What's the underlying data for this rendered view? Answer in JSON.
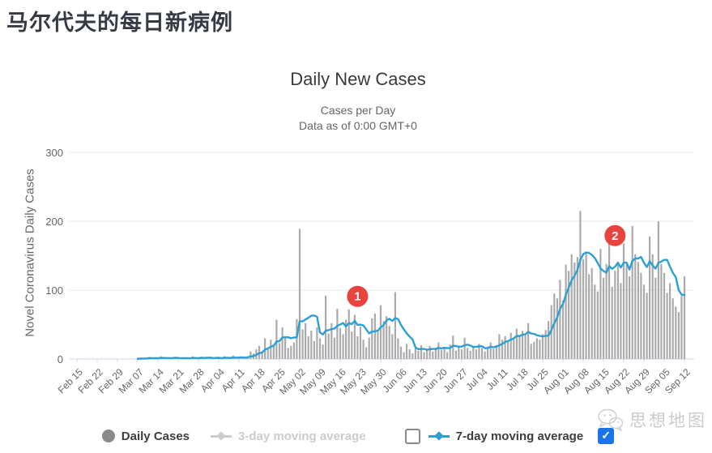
{
  "page": {
    "title": "马尔代夫的每日新病例"
  },
  "chart": {
    "title": "Daily New Cases",
    "subtitle1": "Cases per Day",
    "subtitle2": "Data as of 0:00 GMT+0",
    "y_axis_label": "Novel Coronavirus Daily Cases"
  },
  "legend": {
    "daily_cases_label": "Daily Cases",
    "ma3_label": "3-day moving average",
    "ma3_enabled": false,
    "ma3_checkbox_checked": false,
    "ma7_label": "7-day moving average",
    "ma7_enabled": true,
    "ma7_checkbox_checked": true
  },
  "watermark": {
    "icon": "wechat-logo-icon",
    "text": "思想地图"
  },
  "chart_data": {
    "type": "bar",
    "title": "Daily New Cases",
    "xlabel": "",
    "ylabel": "Novel Coronavirus Daily Cases",
    "ylim": [
      0,
      300
    ],
    "y_ticks": [
      0,
      100,
      200,
      300
    ],
    "grid": "horizontal",
    "legend_position": "bottom",
    "x_start_date": "Feb 15",
    "x_end_date": "Sep 12",
    "x_tick_labels": [
      "Feb 15",
      "Feb 22",
      "Feb 29",
      "Mar 07",
      "Mar 14",
      "Mar 21",
      "Mar 28",
      "Apr 04",
      "Apr 11",
      "Apr 18",
      "Apr 25",
      "May 02",
      "May 09",
      "May 16",
      "May 23",
      "May 30",
      "Jun 06",
      "Jun 13",
      "Jun 20",
      "Jun 27",
      "Jul 04",
      "Jul 11",
      "Jul 18",
      "Jul 25",
      "Aug 01",
      "Aug 08",
      "Aug 15",
      "Aug 22",
      "Aug 29",
      "Sep 05",
      "Sep 12"
    ],
    "series": [
      {
        "name": "Daily Cases",
        "type": "bar",
        "color": "#ababab",
        "values": [
          0,
          0,
          0,
          0,
          0,
          0,
          0,
          0,
          0,
          0,
          0,
          0,
          0,
          0,
          0,
          0,
          0,
          0,
          0,
          0,
          0,
          2,
          2,
          0,
          1,
          3,
          0,
          0,
          2,
          4,
          1,
          0,
          2,
          0,
          3,
          1,
          0,
          2,
          0,
          1,
          4,
          2,
          0,
          3,
          1,
          2,
          2,
          0,
          3,
          1,
          0,
          4,
          2,
          1,
          5,
          0,
          3,
          2,
          1,
          4,
          11,
          8,
          14,
          19,
          9,
          30,
          16,
          28,
          18,
          57,
          23,
          46,
          33,
          16,
          19,
          24,
          58,
          189,
          43,
          52,
          33,
          41,
          26,
          46,
          30,
          21,
          92,
          37,
          52,
          31,
          73,
          45,
          36,
          57,
          72,
          40,
          64,
          33,
          47,
          28,
          17,
          31,
          59,
          66,
          41,
          78,
          55,
          62,
          48,
          36,
          97,
          30,
          18,
          10,
          22,
          14,
          8,
          16,
          12,
          20,
          10,
          14,
          19,
          11,
          16,
          24,
          13,
          17,
          10,
          21,
          34,
          12,
          18,
          14,
          31,
          16,
          12,
          19,
          14,
          22,
          16,
          11,
          18,
          24,
          15,
          20,
          36,
          28,
          33,
          26,
          38,
          30,
          44,
          34,
          41,
          37,
          52,
          22,
          25,
          30,
          28,
          36,
          42,
          55,
          78,
          95,
          88,
          115,
          85,
          137,
          128,
          152,
          140,
          148,
          215,
          145,
          155,
          123,
          132,
          108,
          98,
          160,
          118,
          138,
          190,
          105,
          128,
          140,
          110,
          168,
          138,
          120,
          193,
          152,
          141,
          125,
          108,
          96,
          178,
          152,
          118,
          200,
          138,
          125,
          96,
          110,
          88,
          76,
          68,
          92,
          120
        ]
      },
      {
        "name": "7-day moving average",
        "type": "line",
        "color": "#2b9fd6",
        "derived_from": "Daily Cases",
        "window": 7,
        "visible": true
      },
      {
        "name": "3-day moving average",
        "type": "line",
        "color": "#cccccc",
        "visible": false
      }
    ],
    "annotation_color": "#e8433c",
    "annotations": [
      {
        "label": "1",
        "day_index": 97,
        "date": "May 22",
        "y_value": 91
      },
      {
        "label": "2",
        "day_index": 186,
        "date": "Aug 19",
        "y_value": 179
      }
    ]
  }
}
